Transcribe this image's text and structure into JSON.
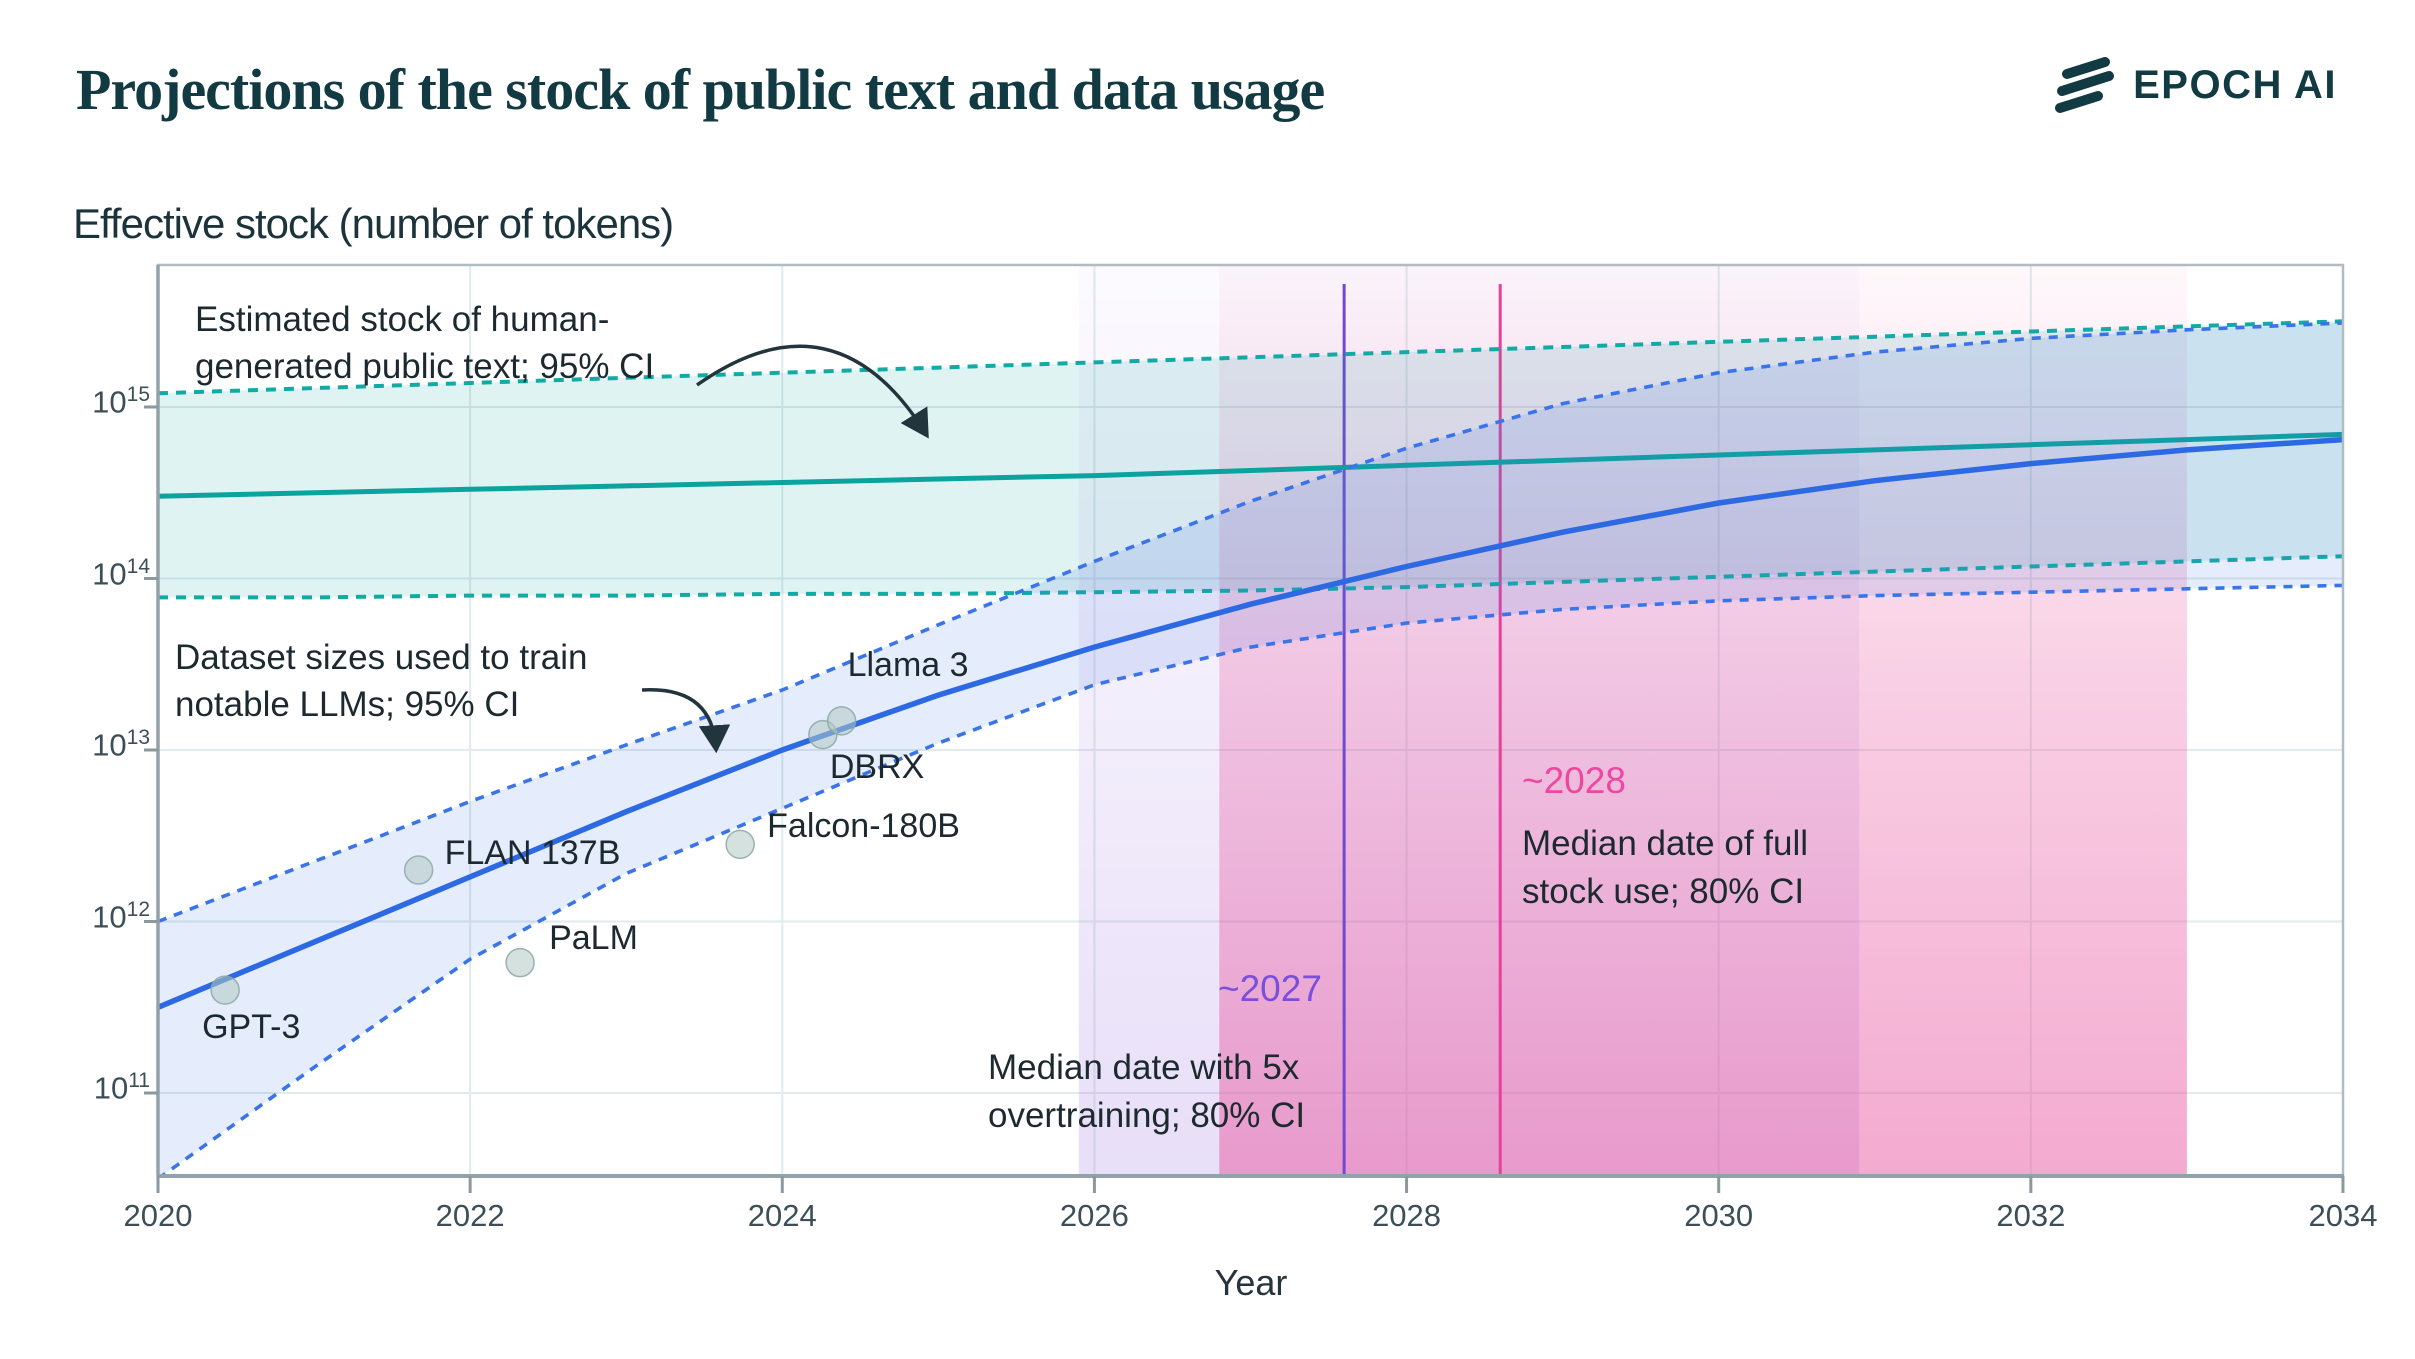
{
  "header": {
    "title": "Projections of the stock of public text and data usage",
    "brand": "EPOCH AI"
  },
  "chart_data": {
    "type": "line",
    "title": "Projections of the stock of public text and data usage",
    "ylabel": "Effective stock (number of tokens)",
    "xlabel": "Year",
    "x_ticks": [
      2020,
      2022,
      2024,
      2026,
      2028,
      2030,
      2032,
      2034
    ],
    "y_tick_base": "10",
    "y_tick_exponents": [
      15,
      14,
      13,
      12,
      11
    ],
    "x_range": [
      2020,
      2034
    ],
    "y_log_range": [
      10.52,
      15.83
    ],
    "grid": true,
    "years": [
      2020,
      2021,
      2022,
      2023,
      2024,
      2025,
      2026,
      2027,
      2028,
      2029,
      2030,
      2031,
      2032,
      2033,
      2034
    ],
    "series": [
      {
        "name": "Estimated stock of human-generated public text (median)",
        "role": "teal_median",
        "log10_tokens": [
          14.48,
          14.5,
          14.52,
          14.54,
          14.56,
          14.58,
          14.6,
          14.63,
          14.66,
          14.69,
          14.72,
          14.75,
          14.78,
          14.81,
          14.84
        ]
      },
      {
        "name": "Stock of human-generated public text, 95% CI upper",
        "role": "teal_upper",
        "log10_tokens": [
          15.08,
          15.11,
          15.14,
          15.17,
          15.2,
          15.23,
          15.26,
          15.29,
          15.32,
          15.35,
          15.38,
          15.41,
          15.44,
          15.47,
          15.5
        ]
      },
      {
        "name": "Stock of human-generated public text, 95% CI lower",
        "role": "teal_lower",
        "log10_tokens": [
          13.89,
          13.89,
          13.9,
          13.9,
          13.91,
          13.91,
          13.92,
          13.93,
          13.95,
          13.98,
          14.01,
          14.04,
          14.07,
          14.1,
          14.13
        ]
      },
      {
        "name": "Dataset sizes used to train notable LLMs (median projection)",
        "role": "blue_median",
        "log10_tokens": [
          11.5,
          11.88,
          12.26,
          12.64,
          13.0,
          13.32,
          13.6,
          13.85,
          14.07,
          14.27,
          14.44,
          14.57,
          14.67,
          14.75,
          14.81
        ]
      },
      {
        "name": "Dataset sizes, 95% CI upper",
        "role": "blue_upper",
        "log10_tokens": [
          12.0,
          12.35,
          12.7,
          13.03,
          13.35,
          13.73,
          14.1,
          14.45,
          14.76,
          15.02,
          15.2,
          15.32,
          15.4,
          15.45,
          15.49
        ]
      },
      {
        "name": "Dataset sizes, 95% CI lower",
        "role": "blue_lower",
        "log10_tokens": [
          10.5,
          11.15,
          11.78,
          12.28,
          12.66,
          13.04,
          13.38,
          13.6,
          13.74,
          13.82,
          13.87,
          13.9,
          13.92,
          13.94,
          13.96
        ]
      }
    ],
    "points": [
      {
        "label": "GPT-3",
        "year": 2020.43,
        "log10_tokens": 11.6,
        "tokens": "4e11"
      },
      {
        "label": "FLAN 137B",
        "year": 2021.67,
        "log10_tokens": 12.3,
        "tokens": "2e12"
      },
      {
        "label": "PaLM",
        "year": 2022.32,
        "log10_tokens": 11.76,
        "tokens": "6e11"
      },
      {
        "label": "Falcon-180B",
        "year": 2023.73,
        "log10_tokens": 12.45,
        "tokens": "2.8e12"
      },
      {
        "label": "DBRX",
        "year": 2024.26,
        "log10_tokens": 13.09,
        "tokens": "1.2e13"
      },
      {
        "label": "Llama 3",
        "year": 2024.38,
        "log10_tokens": 13.17,
        "tokens": "1.5e13"
      }
    ],
    "events": [
      {
        "label": "~2027",
        "desc_line1": "Median date with 5x",
        "desc_line2": "overtraining; 80% CI",
        "median_year": 2027.6,
        "ci_years": [
          2025.9,
          2030.9
        ],
        "color": "#7348d0",
        "label_color": "#7a4fdb"
      },
      {
        "label": "~2028",
        "desc_line1": "Median date of full",
        "desc_line2": "stock use; 80% CI",
        "median_year": 2028.6,
        "ci_years": [
          2026.8,
          2033.0
        ],
        "color": "#e8409a",
        "label_color": "#ee479f"
      }
    ],
    "annotations": [
      {
        "line1": "Estimated stock of human-",
        "line2": "generated public text; 95% CI"
      },
      {
        "line1": "Dataset sizes used to train",
        "line2": "notable LLMs; 95% CI"
      }
    ],
    "colors": {
      "teal_line": "#0aa39e",
      "teal_dash": "#12aaa4",
      "teal_fill": "rgba(16,166,160,0.13)",
      "blue_line": "#2c69e3",
      "blue_dash": "#3a74e8",
      "blue_fill": "rgba(70,120,230,0.14)",
      "purple_line": "#7348d0",
      "pink_line": "#e8409a",
      "grid": "#e1eaec",
      "spine": "#9fadb4",
      "tick": "#8b999f",
      "dot_fill": "rgba(176,200,197,0.55)",
      "dot_stroke": "rgba(138,168,165,0.85)",
      "annotation_arrow": "#22343c"
    },
    "legend_position": "annotated-in-plot"
  }
}
